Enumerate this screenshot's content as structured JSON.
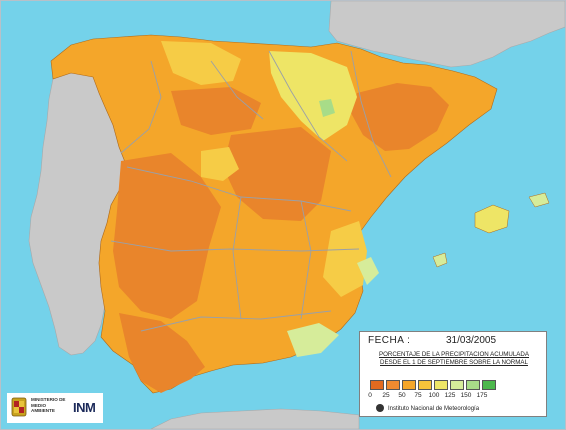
{
  "legend": {
    "fecha_label": "FECHA :",
    "fecha_value": "31/03/2005",
    "subtitle_line1": "PORCENTAJE DE LA PRECIPITACION ACUMULADA",
    "subtitle_line2": "DESDE EL 1 DE SEPTIEMBRE SOBRE LA NORMAL",
    "ticks": [
      "0",
      "25",
      "50",
      "75",
      "100",
      "125",
      "150",
      "175"
    ],
    "colors": [
      "#e26a1f",
      "#ef8a30",
      "#f4a62a",
      "#f7c33a",
      "#eee566",
      "#d6ec9a",
      "#a8dc88",
      "#4cb84c"
    ],
    "credit": "Instituto Nacional de Meteorología"
  },
  "logos": {
    "ministerio": "MINISTERIO DE MEDIO AMBIENTE",
    "inm": "INM"
  },
  "colors": {
    "sea": "#74d2ea",
    "land_outside": "#c9c9c9",
    "borders": "#9aa0a8"
  }
}
